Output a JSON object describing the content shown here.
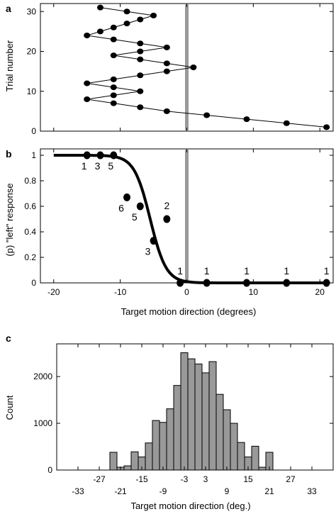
{
  "chart_data": [
    {
      "panel": "a",
      "type": "line",
      "ylabel": "Trial number",
      "xlim": [
        -22,
        22
      ],
      "ylim": [
        0,
        32
      ],
      "yticks": [
        0,
        10,
        20,
        30
      ],
      "xticks": [
        -20,
        -10,
        0,
        10,
        20
      ],
      "reference_x": 0,
      "points": [
        {
          "x": 21,
          "y": 1
        },
        {
          "x": 15,
          "y": 2
        },
        {
          "x": 9,
          "y": 3
        },
        {
          "x": 3,
          "y": 4
        },
        {
          "x": -3,
          "y": 5
        },
        {
          "x": -7,
          "y": 6
        },
        {
          "x": -11,
          "y": 7
        },
        {
          "x": -15,
          "y": 8
        },
        {
          "x": -11,
          "y": 9
        },
        {
          "x": -7,
          "y": 10
        },
        {
          "x": -11,
          "y": 11
        },
        {
          "x": -15,
          "y": 12
        },
        {
          "x": -11,
          "y": 13
        },
        {
          "x": -7,
          "y": 14
        },
        {
          "x": -3,
          "y": 15
        },
        {
          "x": 1,
          "y": 16
        },
        {
          "x": -3,
          "y": 17
        },
        {
          "x": -7,
          "y": 18
        },
        {
          "x": -11,
          "y": 19
        },
        {
          "x": -7,
          "y": 20
        },
        {
          "x": -3,
          "y": 21
        },
        {
          "x": -7,
          "y": 22
        },
        {
          "x": -11,
          "y": 23
        },
        {
          "x": -15,
          "y": 24
        },
        {
          "x": -13,
          "y": 25
        },
        {
          "x": -11,
          "y": 26
        },
        {
          "x": -9,
          "y": 27
        },
        {
          "x": -7,
          "y": 28
        },
        {
          "x": -5,
          "y": 29
        },
        {
          "x": -9,
          "y": 30
        },
        {
          "x": -13,
          "y": 31
        }
      ]
    },
    {
      "panel": "b",
      "type": "scatter",
      "xlabel": "Target motion direction (degrees)",
      "ylabel": "(p) \"left\" response",
      "xlim": [
        -22,
        22
      ],
      "ylim": [
        0,
        1.05
      ],
      "xticks": [
        -20,
        -10,
        0,
        10,
        20
      ],
      "yticks": [
        0,
        0.2,
        0.4,
        0.6,
        0.8,
        1
      ],
      "reference_x": 0,
      "fit": {
        "type": "logistic",
        "mu": -5.5,
        "s": 1.2
      },
      "points": [
        {
          "x": -15,
          "y": 1,
          "n": "1"
        },
        {
          "x": -13,
          "y": 1,
          "n": "3"
        },
        {
          "x": -11,
          "y": 1,
          "n": "5"
        },
        {
          "x": -9,
          "y": 0.67,
          "n": "6"
        },
        {
          "x": -7,
          "y": 0.6,
          "n": "5"
        },
        {
          "x": -5,
          "y": 0.33,
          "n": "3"
        },
        {
          "x": -3,
          "y": 0.5,
          "n": "2"
        },
        {
          "x": -1,
          "y": 0,
          "n": "1"
        },
        {
          "x": 3,
          "y": 0,
          "n": "1"
        },
        {
          "x": 9,
          "y": 0,
          "n": "1"
        },
        {
          "x": 15,
          "y": 0,
          "n": "1"
        },
        {
          "x": 21,
          "y": 0,
          "n": "1"
        }
      ]
    },
    {
      "panel": "c",
      "type": "bar",
      "xlabel": "Target motion direction (deg.)",
      "ylabel": "Count",
      "ylim": [
        0,
        2700
      ],
      "yticks": [
        0,
        1000,
        2000
      ],
      "xticks_row1": [
        -27,
        -15,
        -3,
        3,
        15,
        27
      ],
      "xticks_row2": [
        -33,
        -21,
        -9,
        9,
        21,
        33
      ],
      "bin_width": 2,
      "bins": [
        {
          "x": -23,
          "v": 380
        },
        {
          "x": -21,
          "v": 60
        },
        {
          "x": -19,
          "v": 90
        },
        {
          "x": -17,
          "v": 390
        },
        {
          "x": -15,
          "v": 280
        },
        {
          "x": -13,
          "v": 580
        },
        {
          "x": -11,
          "v": 1060
        },
        {
          "x": -9,
          "v": 1020
        },
        {
          "x": -7,
          "v": 1310
        },
        {
          "x": -5,
          "v": 1810
        },
        {
          "x": -3,
          "v": 2510
        },
        {
          "x": -1,
          "v": 2380
        },
        {
          "x": 1,
          "v": 2270
        },
        {
          "x": 3,
          "v": 2080
        },
        {
          "x": 5,
          "v": 2320
        },
        {
          "x": 7,
          "v": 1620
        },
        {
          "x": 9,
          "v": 1290
        },
        {
          "x": 11,
          "v": 1000
        },
        {
          "x": 13,
          "v": 590
        },
        {
          "x": 15,
          "v": 280
        },
        {
          "x": 17,
          "v": 510
        },
        {
          "x": 19,
          "v": 60
        },
        {
          "x": 21,
          "v": 380
        }
      ]
    }
  ]
}
